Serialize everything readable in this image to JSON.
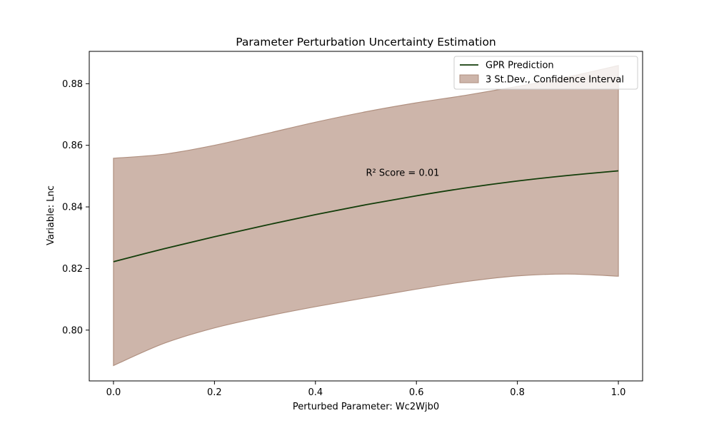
{
  "chart_data": {
    "type": "line",
    "title": "Parameter Perturbation Uncertainty Estimation",
    "xlabel": "Perturbed Parameter: Wc2Wjb0",
    "ylabel": "Variable: Lnc",
    "xlim": [
      -0.048,
      1.048
    ],
    "ylim": [
      0.7835,
      0.8905
    ],
    "x_ticks": [
      0.0,
      0.2,
      0.4,
      0.6,
      0.8,
      1.0
    ],
    "x_tick_labels": [
      "0.0",
      "0.2",
      "0.4",
      "0.6",
      "0.8",
      "1.0"
    ],
    "y_ticks": [
      0.8,
      0.82,
      0.84,
      0.86,
      0.88
    ],
    "y_tick_labels": [
      "0.80",
      "0.82",
      "0.84",
      "0.86",
      "0.88"
    ],
    "grid": false,
    "legend_position": "top-right",
    "x": [
      0.0,
      0.1,
      0.2,
      0.3,
      0.4,
      0.5,
      0.6,
      0.7,
      0.8,
      0.9,
      1.0
    ],
    "series": [
      {
        "name": "GPR Prediction",
        "kind": "line",
        "color": "#133d0a",
        "values": [
          0.8222,
          0.8264,
          0.8303,
          0.834,
          0.8375,
          0.8407,
          0.8436,
          0.8462,
          0.8484,
          0.8502,
          0.8517
        ]
      },
      {
        "name": "3 St.Dev., Confidence Interval",
        "kind": "band",
        "color": "#c4a89b",
        "edge_color": "#b09080",
        "upper": [
          0.8558,
          0.8571,
          0.86,
          0.8637,
          0.8675,
          0.8709,
          0.8738,
          0.8763,
          0.8791,
          0.8822,
          0.8859
        ],
        "lower": [
          0.7885,
          0.7957,
          0.8007,
          0.8044,
          0.8076,
          0.8105,
          0.8133,
          0.8158,
          0.8176,
          0.8182,
          0.8175
        ]
      }
    ],
    "annotations": [
      {
        "text": "R² Score = 0.01",
        "x": 0.5,
        "y": 0.851
      }
    ]
  }
}
